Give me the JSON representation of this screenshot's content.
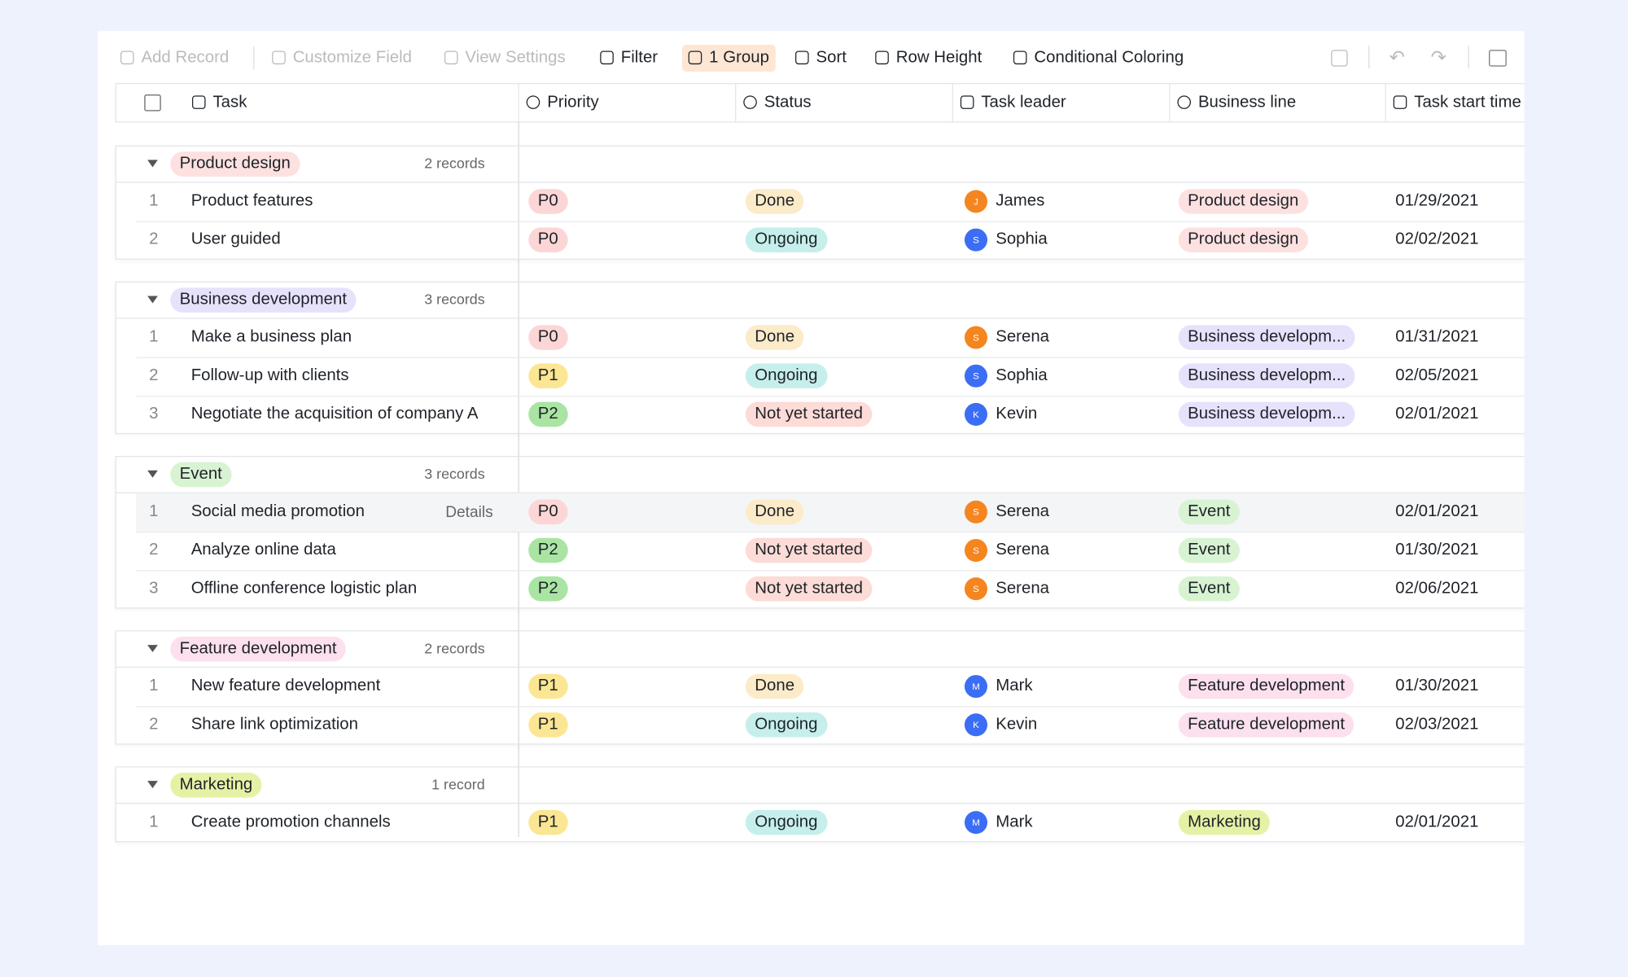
{
  "toolbar": {
    "items": [
      "Add Record",
      "Customize Field",
      "View Settings",
      "Filter",
      "1 Group",
      "Sort",
      "Row Height",
      "Conditional Coloring"
    ]
  },
  "columns": [
    "Task",
    "Priority",
    "Status",
    "Task leader",
    "Business line",
    "Task start time"
  ],
  "palette": {
    "P0": "#fcd6d6",
    "P1": "#fbe693",
    "P2": "#a9e4a3",
    "Done": "#fcebc9",
    "Ongoing": "#c6efec",
    "Not yet started": "#fddbd6",
    "Product design": "#fde1e1",
    "Business development": "#e6e2fb",
    "Business developm...": "#e6e2fb",
    "Event": "#d8f3d2",
    "Feature development": "#fce0ee",
    "Marketing": "#e5f2a6"
  },
  "groups": [
    {
      "name": "Product design",
      "count": "2 records",
      "rows": [
        {
          "index": "1",
          "task": "Product features",
          "priority": "P0",
          "status": "Done",
          "leader": {
            "initial": "J",
            "name": "James",
            "color": "#f5851f"
          },
          "business_line": "Product design",
          "start": "01/29/2021"
        },
        {
          "index": "2",
          "task": "User guided",
          "priority": "P0",
          "status": "Ongoing",
          "leader": {
            "initial": "S",
            "name": "Sophia",
            "color": "#3b6ef5"
          },
          "business_line": "Product design",
          "start": "02/02/2021"
        }
      ]
    },
    {
      "name": "Business development",
      "count": "3 records",
      "rows": [
        {
          "index": "1",
          "task": "Make a business plan",
          "priority": "P0",
          "status": "Done",
          "leader": {
            "initial": "S",
            "name": "Serena",
            "color": "#f5851f"
          },
          "business_line": "Business developm...",
          "start": "01/31/2021"
        },
        {
          "index": "2",
          "task": "Follow-up with clients",
          "priority": "P1",
          "status": "Ongoing",
          "leader": {
            "initial": "S",
            "name": "Sophia",
            "color": "#3b6ef5"
          },
          "business_line": "Business developm...",
          "start": "02/05/2021"
        },
        {
          "index": "3",
          "task": "Negotiate the acquisition of company A",
          "priority": "P2",
          "status": "Not yet started",
          "leader": {
            "initial": "K",
            "name": "Kevin",
            "color": "#3b6ef5"
          },
          "business_line": "Business developm...",
          "start": "02/01/2021"
        }
      ]
    },
    {
      "name": "Event",
      "count": "3 records",
      "rows": [
        {
          "index": "1",
          "task": "Social media promotion",
          "action": "Details",
          "priority": "P0",
          "status": "Done",
          "leader": {
            "initial": "S",
            "name": "Serena",
            "color": "#f5851f"
          },
          "business_line": "Event",
          "start": "02/01/2021"
        },
        {
          "index": "2",
          "task": "Analyze online data",
          "priority": "P2",
          "status": "Not yet started",
          "leader": {
            "initial": "S",
            "name": "Serena",
            "color": "#f5851f"
          },
          "business_line": "Event",
          "start": "01/30/2021"
        },
        {
          "index": "3",
          "task": "Offline conference logistic plan",
          "priority": "P2",
          "status": "Not yet started",
          "leader": {
            "initial": "S",
            "name": "Serena",
            "color": "#f5851f"
          },
          "business_line": "Event",
          "start": "02/06/2021"
        }
      ]
    },
    {
      "name": "Feature development",
      "count": "2 records",
      "rows": [
        {
          "index": "1",
          "task": "New feature development",
          "priority": "P1",
          "status": "Done",
          "leader": {
            "initial": "M",
            "name": "Mark",
            "color": "#3b6ef5"
          },
          "business_line": "Feature development",
          "start": "01/30/2021"
        },
        {
          "index": "2",
          "task": "Share link optimization",
          "priority": "P1",
          "status": "Ongoing",
          "leader": {
            "initial": "K",
            "name": "Kevin",
            "color": "#3b6ef5"
          },
          "business_line": "Feature development",
          "start": "02/03/2021"
        }
      ]
    },
    {
      "name": "Marketing",
      "count": "1 record",
      "rows": [
        {
          "index": "1",
          "task": "Create promotion channels",
          "priority": "P1",
          "status": "Ongoing",
          "leader": {
            "initial": "M",
            "name": "Mark",
            "color": "#3b6ef5"
          },
          "business_line": "Marketing",
          "start": "02/01/2021"
        }
      ]
    }
  ]
}
